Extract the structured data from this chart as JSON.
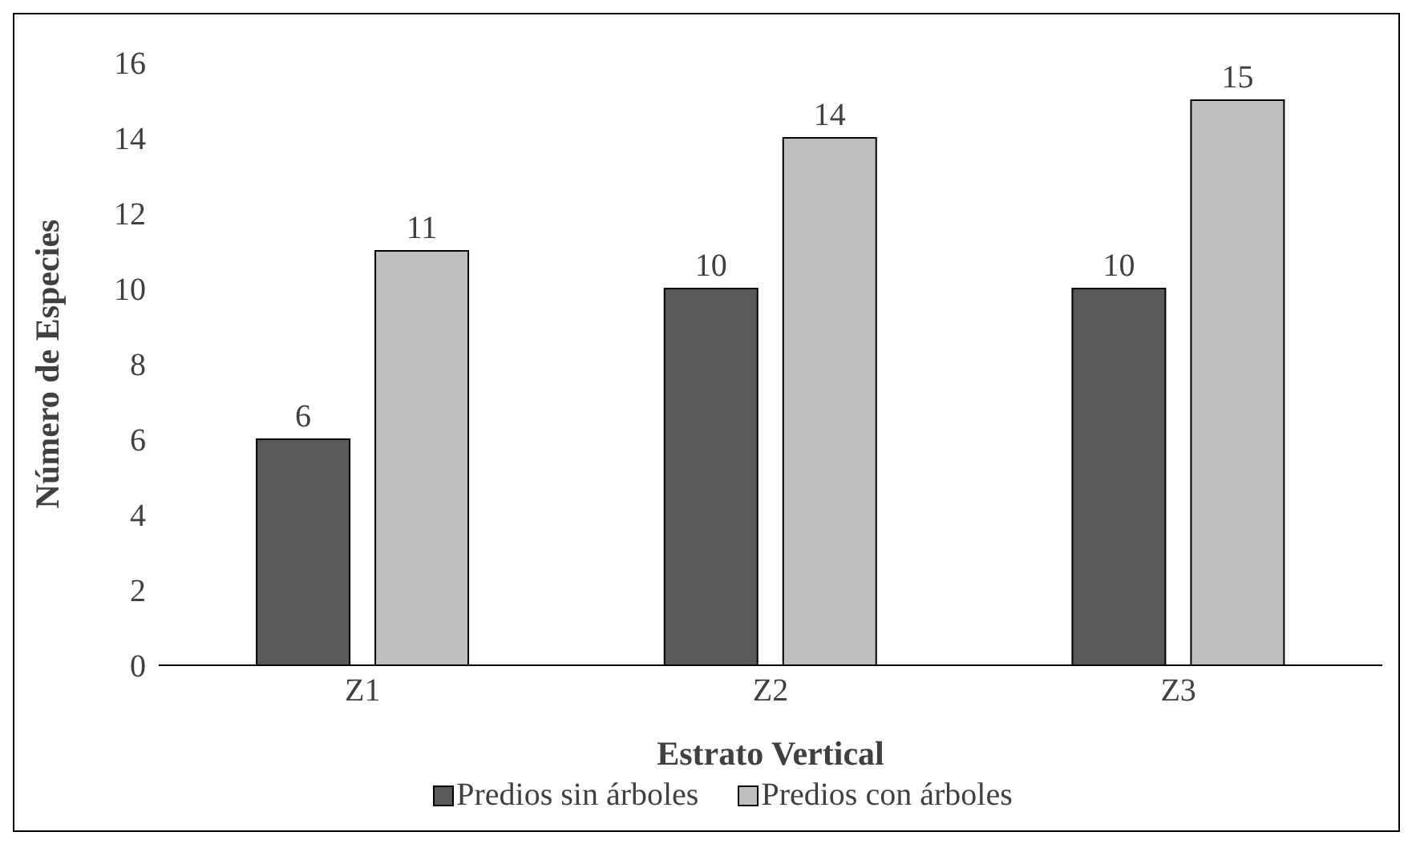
{
  "chart_data": {
    "type": "bar",
    "xlabel": "Estrato Vertical",
    "ylabel": "Número de Especies",
    "categories": [
      "Z1",
      "Z2",
      "Z3"
    ],
    "series": [
      {
        "name": "Predios sin árboles",
        "color": "#595959",
        "values": [
          6,
          10,
          10
        ]
      },
      {
        "name": "Predios con árboles",
        "color": "#bfbfbf",
        "values": [
          11,
          14,
          15
        ]
      }
    ],
    "ylim": [
      0,
      16
    ],
    "yticks": [
      0,
      2,
      4,
      6,
      8,
      10,
      12,
      14,
      16
    ],
    "data_labels": true,
    "legend": "bottom",
    "grid": false
  }
}
